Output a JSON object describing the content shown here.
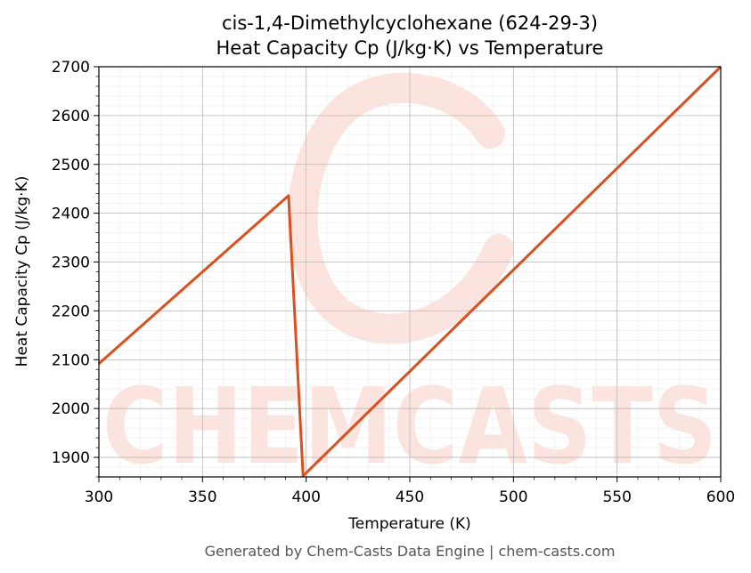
{
  "chart_data": {
    "type": "line",
    "title": [
      "cis-1,4-Dimethylcyclohexane (624-29-3)",
      "Heat Capacity Cp (J/kg·K) vs Temperature"
    ],
    "xlabel": "Temperature (K)",
    "ylabel": "Heat Capacity Cp (J/kg·K)",
    "xlim": [
      300,
      600
    ],
    "ylim": [
      1860,
      2700
    ],
    "xticks": [
      300,
      350,
      400,
      450,
      500,
      550,
      600
    ],
    "yticks": [
      1900,
      2000,
      2100,
      2200,
      2300,
      2400,
      2500,
      2600,
      2700
    ],
    "grid": true,
    "series": [
      {
        "color": "#d9501e",
        "x": [
          300,
          391.5,
          398.5,
          600
        ],
        "y": [
          2092,
          2436,
          1862,
          2700
        ]
      }
    ]
  },
  "footer": "Generated by Chem-Casts Data Engine | chem-casts.com",
  "watermark": {
    "text": "CHEMCASTS",
    "color": "#fde3dd"
  }
}
